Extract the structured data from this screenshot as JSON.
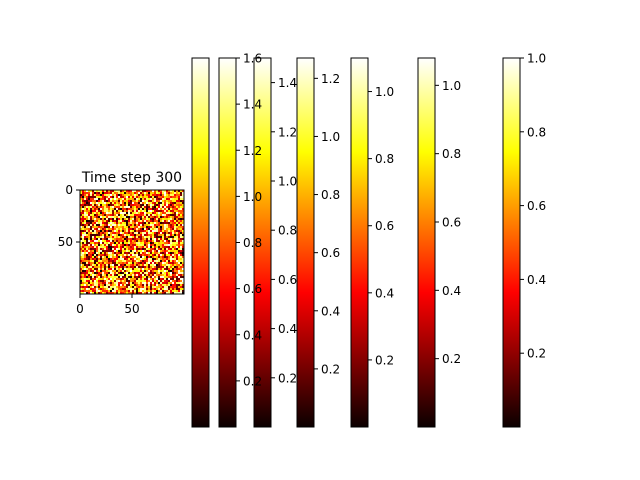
{
  "chart_data": [
    {
      "type": "heatmap",
      "title": "Time step 300",
      "colormap": "hot",
      "grid_size": [
        100,
        100
      ],
      "xlim": [
        0,
        100
      ],
      "ylim": [
        100,
        0
      ],
      "xticks": [
        0,
        50
      ],
      "yticks": [
        0,
        50
      ],
      "grid": false
    },
    {
      "type": "colorbar",
      "colormap": "hot",
      "colorbars": [
        {
          "vmin": 0.0,
          "vmax": 1.6,
          "ticks": [
            0.2,
            0.4,
            0.6,
            0.8,
            1.0,
            1.2,
            1.4,
            1.6
          ],
          "tick_labels": [
            "0.2",
            "0.4",
            "0.6",
            "0.8",
            "1.0",
            "1.2",
            "1.4",
            "1.6"
          ]
        },
        {
          "vmin": 0.0,
          "vmax": 1.5,
          "ticks": [
            0.2,
            0.4,
            0.6,
            0.8,
            1.0,
            1.2,
            1.4
          ],
          "tick_labels": [
            "0.2",
            "0.4",
            "0.6",
            "0.8",
            "1.0",
            "1.2",
            "1.4"
          ]
        },
        {
          "vmin": 0.0,
          "vmax": 1.27,
          "ticks": [
            0.2,
            0.4,
            0.6,
            0.8,
            1.0,
            1.2
          ],
          "tick_labels": [
            "0.2",
            "0.4",
            "0.6",
            "0.8",
            "1.0",
            "1.2"
          ]
        },
        {
          "vmin": 0.0,
          "vmax": 1.1,
          "ticks": [
            0.2,
            0.4,
            0.6,
            0.8,
            1.0
          ],
          "tick_labels": [
            "0.2",
            "0.4",
            "0.6",
            "0.8",
            "1.0"
          ]
        },
        {
          "vmin": 0.0,
          "vmax": 1.08,
          "ticks": [
            0.2,
            0.4,
            0.6,
            0.8,
            1.0
          ],
          "tick_labels": [
            "0.2",
            "0.4",
            "0.6",
            "0.8",
            "1.0"
          ]
        },
        {
          "vmin": 0.0,
          "vmax": 1.0,
          "ticks": [
            0.2,
            0.4,
            0.6,
            0.8,
            1.0
          ],
          "tick_labels": [
            "0.2",
            "0.4",
            "0.6",
            "0.8",
            "1.0"
          ]
        }
      ]
    }
  ]
}
